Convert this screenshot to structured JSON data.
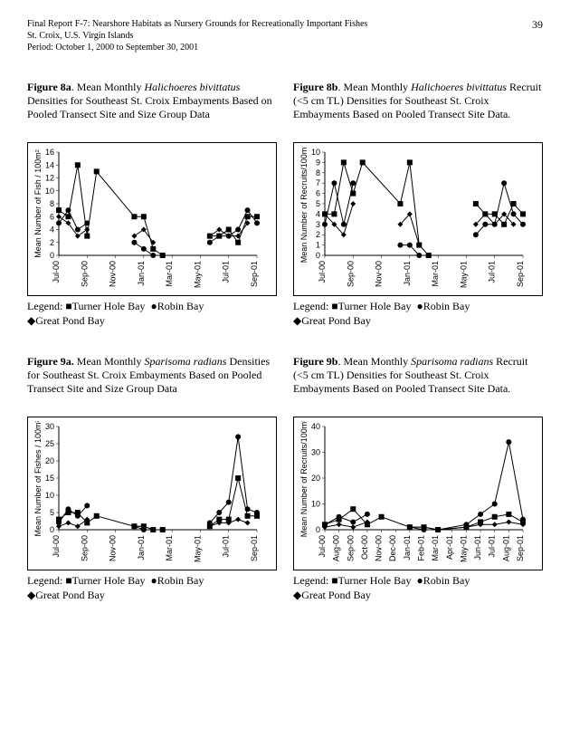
{
  "header": {
    "line1": "Final Report F-7: Nearshore Habitats as Nursery Grounds for Recreationally Important Fishes",
    "line2": "St. Croix, U.S. Virgin Islands",
    "line3": "Period: October 1, 2000 to September 30, 2001",
    "page_number": "39"
  },
  "legend": {
    "prefix": "Legend:  ",
    "turner": "Turner Hole Bay",
    "robin": "Robin Bay",
    "great": "Great Pond Bay"
  },
  "charts": {
    "f8a": {
      "caption_bold": "Figure 8a",
      "caption_rest_pre": ".  Mean Monthly ",
      "caption_italic": "Halichoeres bivittatus",
      "caption_rest_post": " Densities for Southeast St. Croix Embayments Based on Pooled Transect Site and Size Group Data",
      "type": "line-scatter",
      "ylabel": "Mean Number of Fish / 100m²",
      "ylim": [
        0,
        16
      ],
      "ytick_step": 2,
      "xcats": [
        "Jul-00",
        "Sep-00",
        "Nov-00",
        "Jan-01",
        "Mar-01",
        "May-01",
        "Jul-01",
        "Sep-01"
      ],
      "colors": {
        "line": "#000000",
        "bg": "#ffffff"
      },
      "series": {
        "turner": {
          "marker": "square",
          "points": [
            [
              0,
              7
            ],
            [
              0.5,
              6
            ],
            [
              1,
              14
            ],
            [
              1.5,
              3
            ],
            [
              2,
              13
            ],
            [
              4,
              6
            ],
            [
              4.5,
              6
            ],
            [
              5,
              1
            ],
            [
              5.5,
              0
            ],
            [
              8,
              3
            ],
            [
              8.5,
              3
            ],
            [
              9,
              4
            ],
            [
              9.5,
              2
            ],
            [
              10,
              6
            ],
            [
              10.5,
              6
            ]
          ]
        },
        "robin": {
          "marker": "circle",
          "points": [
            [
              0,
              5
            ],
            [
              0.5,
              7
            ],
            [
              1,
              4
            ],
            [
              1.5,
              5
            ],
            [
              4,
              2
            ],
            [
              4.5,
              1
            ],
            [
              5,
              0
            ],
            [
              5.5,
              0
            ],
            [
              8,
              2
            ],
            [
              8.5,
              3
            ],
            [
              9,
              3
            ],
            [
              9.5,
              4
            ],
            [
              10,
              7
            ],
            [
              10.5,
              5
            ]
          ]
        },
        "great": {
          "marker": "diamond",
          "points": [
            [
              0,
              6
            ],
            [
              0.5,
              5
            ],
            [
              1,
              3
            ],
            [
              1.5,
              4
            ],
            [
              4,
              3
            ],
            [
              4.5,
              4
            ],
            [
              5,
              2
            ],
            [
              8,
              3
            ],
            [
              8.5,
              4
            ],
            [
              9,
              3
            ],
            [
              9.5,
              3
            ],
            [
              10,
              5
            ]
          ]
        }
      }
    },
    "f8b": {
      "caption_bold": "Figure 8b",
      "caption_rest_pre": ". Mean Monthly ",
      "caption_italic": "Halichoeres bivittatus",
      "caption_rest_post": " Recruit (<5 cm TL) Densities for Southeast St. Croix Embayments Based on Pooled Transect Site Data.",
      "type": "line-scatter",
      "ylabel": "Mean Number of Recruits/100m²",
      "ylim": [
        0,
        10
      ],
      "ytick_step": 1,
      "xcats": [
        "Jul-00",
        "Sep-00",
        "Nov-00",
        "Jan-01",
        "Mar-01",
        "May-01",
        "Jul-01",
        "Sep-01"
      ],
      "colors": {
        "line": "#000000",
        "bg": "#ffffff"
      },
      "series": {
        "turner": {
          "marker": "square",
          "points": [
            [
              0,
              4
            ],
            [
              0.5,
              4
            ],
            [
              1,
              9
            ],
            [
              1.5,
              6
            ],
            [
              2,
              9
            ],
            [
              4,
              5
            ],
            [
              4.5,
              9
            ],
            [
              5,
              1
            ],
            [
              5.5,
              0
            ],
            [
              8,
              5
            ],
            [
              8.5,
              4
            ],
            [
              9,
              4
            ],
            [
              9.5,
              3
            ],
            [
              10,
              5
            ],
            [
              10.5,
              4
            ]
          ]
        },
        "robin": {
          "marker": "circle",
          "points": [
            [
              0,
              3
            ],
            [
              0.5,
              7
            ],
            [
              1,
              3
            ],
            [
              1.5,
              7
            ],
            [
              4,
              1
            ],
            [
              4.5,
              1
            ],
            [
              5,
              0
            ],
            [
              5.5,
              0
            ],
            [
              8,
              2
            ],
            [
              8.5,
              3
            ],
            [
              9,
              3
            ],
            [
              9.5,
              7
            ],
            [
              10,
              4
            ],
            [
              10.5,
              3
            ]
          ]
        },
        "great": {
          "marker": "diamond",
          "points": [
            [
              0,
              4
            ],
            [
              0.5,
              3
            ],
            [
              1,
              2
            ],
            [
              1.5,
              5
            ],
            [
              4,
              3
            ],
            [
              4.5,
              4
            ],
            [
              5,
              1
            ],
            [
              8,
              3
            ],
            [
              8.5,
              4
            ],
            [
              9,
              3
            ],
            [
              9.5,
              4
            ],
            [
              10,
              3
            ]
          ]
        }
      }
    },
    "f9a": {
      "caption_bold": "Figure 9a.",
      "caption_rest_pre": "  Mean Monthly ",
      "caption_italic": "Sparisoma radians",
      "caption_rest_post": " Densities for Southeast St. Croix Embayments Based on Pooled Transect Site and Size Group Data",
      "type": "line-scatter",
      "ylabel": "Mean Number of Fishes / 100m²",
      "ylim": [
        0,
        30
      ],
      "ytick_step": 5,
      "xcats": [
        "Jul-00",
        "Sep-00",
        "Nov-00",
        "Jan-01",
        "Mar-01",
        "May-01",
        "Jul-01",
        "Sep-01"
      ],
      "colors": {
        "line": "#000000",
        "bg": "#ffffff"
      },
      "series": {
        "turner": {
          "marker": "square",
          "points": [
            [
              0,
              3
            ],
            [
              0.5,
              5
            ],
            [
              1,
              5
            ],
            [
              1.5,
              2
            ],
            [
              2,
              4
            ],
            [
              4,
              1
            ],
            [
              4.5,
              1
            ],
            [
              5,
              0
            ],
            [
              5.5,
              0
            ],
            [
              8,
              1
            ],
            [
              8.5,
              3
            ],
            [
              9,
              3
            ],
            [
              9.5,
              15
            ],
            [
              10,
              4
            ],
            [
              10.5,
              4
            ]
          ]
        },
        "robin": {
          "marker": "circle",
          "points": [
            [
              0,
              2
            ],
            [
              0.5,
              6
            ],
            [
              1,
              4
            ],
            [
              1.5,
              7
            ],
            [
              4,
              1
            ],
            [
              4.5,
              0
            ],
            [
              5,
              0
            ],
            [
              5.5,
              0
            ],
            [
              8,
              2
            ],
            [
              8.5,
              5
            ],
            [
              9,
              8
            ],
            [
              9.5,
              27
            ],
            [
              10,
              6
            ],
            [
              10.5,
              5
            ]
          ]
        },
        "great": {
          "marker": "diamond",
          "points": [
            [
              0,
              1
            ],
            [
              0.5,
              2
            ],
            [
              1,
              1
            ],
            [
              1.5,
              3
            ],
            [
              4,
              1
            ],
            [
              4.5,
              1
            ],
            [
              5,
              0
            ],
            [
              8,
              1
            ],
            [
              8.5,
              2
            ],
            [
              9,
              2
            ],
            [
              9.5,
              3
            ],
            [
              10,
              2
            ]
          ]
        }
      }
    },
    "f9b": {
      "caption_bold": "Figure 9b",
      "caption_rest_pre": ".  Mean Monthly ",
      "caption_italic": "Sparisoma radians",
      "caption_rest_post": " Recruit (<5 cm TL) Densities for Southeast St. Croix Embayments Based on Pooled Transect Site Data.",
      "type": "line-scatter",
      "ylabel": "Mean Number of Recruits/100m²",
      "ylim": [
        0,
        40
      ],
      "ytick_step": 10,
      "xcats_full": [
        "Jul-00",
        "Aug-00",
        "Sep-00",
        "Oct-00",
        "Nov-00",
        "Dec-00",
        "Jan-01",
        "Feb-01",
        "Mar-01",
        "Apr-01",
        "May-01",
        "Jun-01",
        "Jul-01",
        "Aug-01",
        "Sep-01"
      ],
      "colors": {
        "line": "#000000",
        "bg": "#ffffff"
      },
      "series": {
        "turner": {
          "marker": "square",
          "points": [
            [
              0,
              2
            ],
            [
              1,
              4
            ],
            [
              2,
              8
            ],
            [
              3,
              2
            ],
            [
              4,
              5
            ],
            [
              6,
              1
            ],
            [
              7,
              1
            ],
            [
              8,
              0
            ],
            [
              10,
              1
            ],
            [
              11,
              3
            ],
            [
              12,
              5
            ],
            [
              13,
              6
            ],
            [
              14,
              3
            ]
          ]
        },
        "robin": {
          "marker": "circle",
          "points": [
            [
              0,
              2
            ],
            [
              1,
              5
            ],
            [
              2,
              3
            ],
            [
              3,
              6
            ],
            [
              6,
              1
            ],
            [
              7,
              0
            ],
            [
              8,
              0
            ],
            [
              10,
              2
            ],
            [
              11,
              6
            ],
            [
              12,
              10
            ],
            [
              13,
              34
            ],
            [
              14,
              4
            ]
          ]
        },
        "great": {
          "marker": "diamond",
          "points": [
            [
              0,
              1
            ],
            [
              1,
              2
            ],
            [
              2,
              1
            ],
            [
              3,
              3
            ],
            [
              6,
              1
            ],
            [
              7,
              1
            ],
            [
              8,
              0
            ],
            [
              10,
              1
            ],
            [
              11,
              2
            ],
            [
              12,
              2
            ],
            [
              13,
              3
            ],
            [
              14,
              2
            ]
          ]
        }
      }
    }
  }
}
